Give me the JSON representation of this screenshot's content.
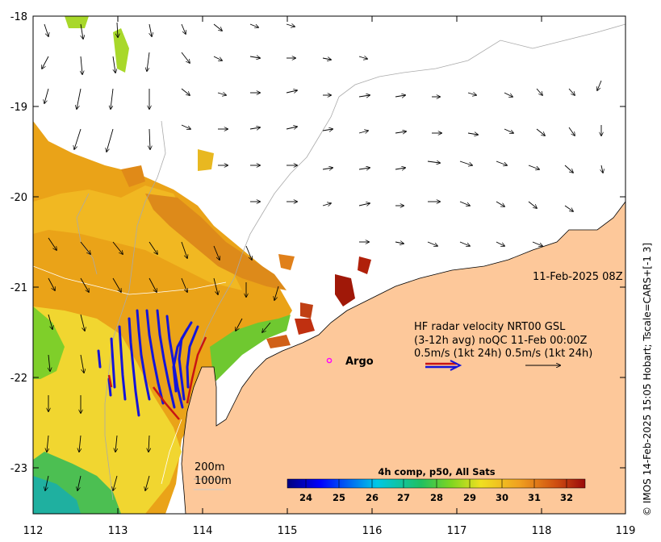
{
  "map": {
    "timestamp": "11-Feb-2025 08Z",
    "x_ticks": [
      "112",
      "113",
      "114",
      "115",
      "116",
      "117",
      "118",
      "119"
    ],
    "y_ticks": [
      "-18",
      "-19",
      "-20",
      "-21",
      "-22",
      "-23"
    ],
    "lon_range": [
      112,
      119
    ],
    "lat_range": [
      -23.5,
      -18
    ],
    "legend": {
      "line1": "HF radar velocity  NRT00 GSL",
      "line2": "(3-12h avg) noQC 11-Feb 00:00Z",
      "line3": "0.5m/s (1kt 24h)  0.5m/s (1kt 24h)"
    },
    "argo_label": "Argo",
    "argo_position": {
      "lon": 115.45,
      "lat": -21.8
    },
    "isobaths": [
      "200m",
      "1000m"
    ],
    "colorbar": {
      "title": "4h comp, p50, All Sats",
      "ticks": [
        "24",
        "25",
        "26",
        "27",
        "28",
        "29",
        "30",
        "31",
        "32"
      ],
      "range": [
        23.5,
        32.5
      ]
    },
    "credit": "© IMOS 14-Feb-2025 15:05 Hobart; Tscale=CARS+[-1 3]",
    "colors": {
      "land": "#fdc89a",
      "radar_blue": "#1515d8",
      "radar_red": "#c81414",
      "argo": "#ff00ff",
      "sst_warm": "#e8a01c",
      "sst_hot": "#a01808"
    }
  }
}
